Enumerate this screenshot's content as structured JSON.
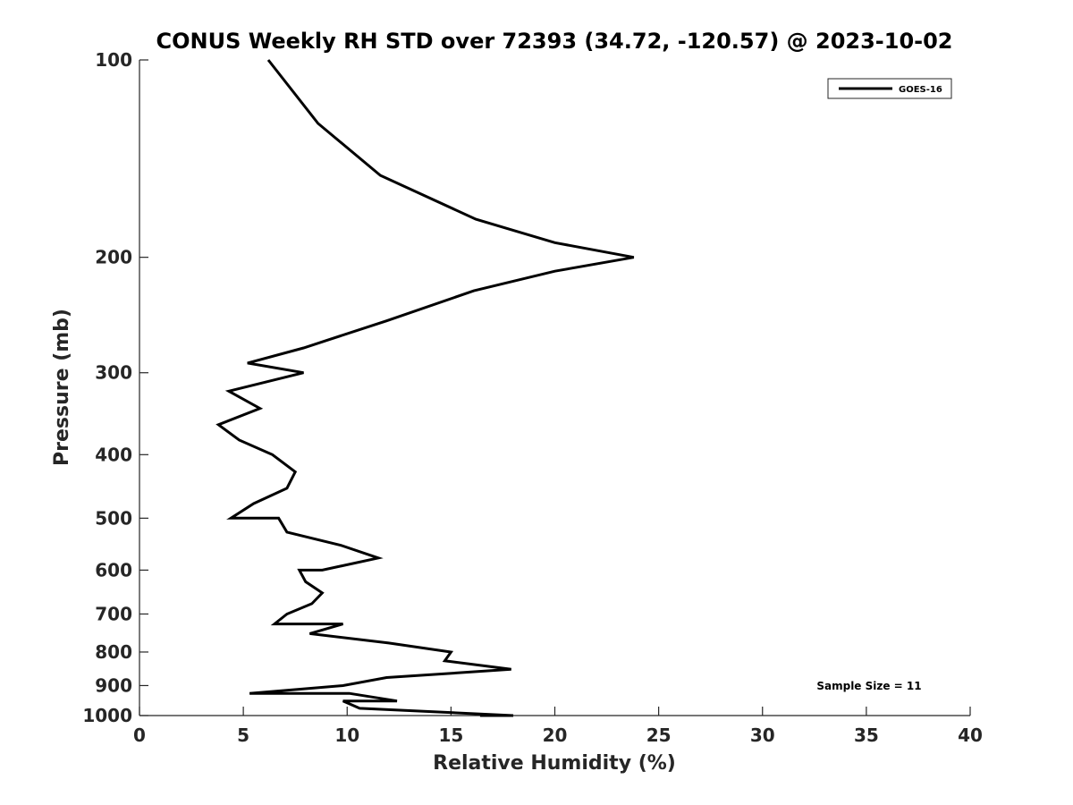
{
  "chart_data": {
    "type": "line",
    "title": "CONUS Weekly RH STD over 72393 (34.72, -120.57) @ 2023-10-02",
    "xlabel": "Relative Humidity (%)",
    "ylabel": "Pressure (mb)",
    "xlim": [
      0,
      40
    ],
    "ylim": [
      100,
      1000
    ],
    "y_scale": "log",
    "y_reversed": true,
    "x_ticks": [
      0,
      5,
      10,
      15,
      20,
      25,
      30,
      35,
      40
    ],
    "y_ticks": [
      100,
      200,
      300,
      400,
      500,
      600,
      700,
      800,
      900,
      1000
    ],
    "grid": false,
    "legend_position": "top-right",
    "colors": {
      "series": "#000000",
      "axis": "#262626"
    },
    "series": [
      {
        "name": "GOES-16",
        "points": [
          [
            6.2,
            100
          ],
          [
            8.6,
            125
          ],
          [
            11.6,
            150
          ],
          [
            16.2,
            175
          ],
          [
            20.0,
            190
          ],
          [
            23.8,
            200
          ],
          [
            20.0,
            210
          ],
          [
            16.1,
            225
          ],
          [
            11.9,
            250
          ],
          [
            7.9,
            275
          ],
          [
            5.2,
            290
          ],
          [
            7.9,
            300
          ],
          [
            4.3,
            320
          ],
          [
            5.8,
            340
          ],
          [
            3.8,
            360
          ],
          [
            4.8,
            380
          ],
          [
            6.4,
            400
          ],
          [
            7.5,
            425
          ],
          [
            7.1,
            450
          ],
          [
            5.5,
            475
          ],
          [
            4.4,
            500
          ],
          [
            6.7,
            500
          ],
          [
            7.1,
            525
          ],
          [
            9.7,
            550
          ],
          [
            11.5,
            575
          ],
          [
            8.8,
            600
          ],
          [
            7.7,
            600
          ],
          [
            8.0,
            625
          ],
          [
            8.8,
            650
          ],
          [
            8.3,
            675
          ],
          [
            7.1,
            700
          ],
          [
            6.5,
            725
          ],
          [
            9.8,
            725
          ],
          [
            8.2,
            750
          ],
          [
            12.0,
            775
          ],
          [
            15.0,
            800
          ],
          [
            14.7,
            825
          ],
          [
            17.9,
            850
          ],
          [
            11.9,
            875
          ],
          [
            9.8,
            900
          ],
          [
            5.3,
            925
          ],
          [
            10.1,
            925
          ],
          [
            12.4,
            950
          ],
          [
            9.8,
            950
          ],
          [
            10.6,
            975
          ],
          [
            18.0,
            1000
          ],
          [
            16.4,
            1000
          ]
        ]
      }
    ],
    "annotation": "Sample Size = 11"
  }
}
